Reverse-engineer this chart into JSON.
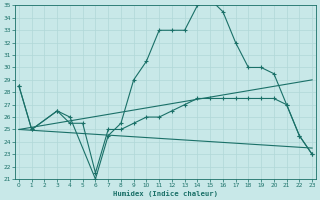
{
  "bg_color": "#c8e8e8",
  "grid_color": "#b0d8d8",
  "line_color": "#1a7068",
  "line1_x": [
    0,
    1,
    3,
    4,
    6,
    7,
    8,
    9,
    10,
    11,
    12,
    13,
    14,
    15,
    16,
    17,
    18,
    19,
    20,
    21,
    22,
    23
  ],
  "line1_y": [
    28.5,
    25.0,
    26.5,
    26.0,
    21.0,
    24.5,
    25.5,
    29.0,
    30.5,
    33.0,
    33.0,
    33.0,
    35.0,
    35.5,
    34.5,
    32.0,
    30.0,
    30.0,
    29.5,
    27.0,
    24.5,
    23.0
  ],
  "line2_x": [
    0,
    1,
    3,
    4,
    5,
    6,
    7,
    8,
    9,
    10,
    11,
    12,
    13,
    14,
    15,
    16,
    17,
    18,
    19,
    20,
    21,
    22,
    23
  ],
  "line2_y": [
    28.5,
    25.0,
    26.5,
    25.5,
    25.5,
    21.5,
    25.0,
    25.0,
    25.5,
    26.0,
    26.0,
    26.5,
    27.0,
    27.5,
    27.5,
    27.5,
    27.5,
    27.5,
    27.5,
    27.5,
    27.0,
    24.5,
    23.0
  ],
  "line3_x": [
    0,
    23
  ],
  "line3_y": [
    25.0,
    29.0
  ],
  "line4_x": [
    0,
    23
  ],
  "line4_y": [
    25.0,
    23.5
  ],
  "xlabel": "Humidex (Indice chaleur)",
  "xlim": [
    0,
    23
  ],
  "ylim": [
    21,
    35
  ],
  "yticks": [
    21,
    22,
    23,
    24,
    25,
    26,
    27,
    28,
    29,
    30,
    31,
    32,
    33,
    34,
    35
  ],
  "xticks": [
    0,
    1,
    2,
    3,
    4,
    5,
    6,
    7,
    8,
    9,
    10,
    11,
    12,
    13,
    14,
    15,
    16,
    17,
    18,
    19,
    20,
    21,
    22,
    23
  ]
}
